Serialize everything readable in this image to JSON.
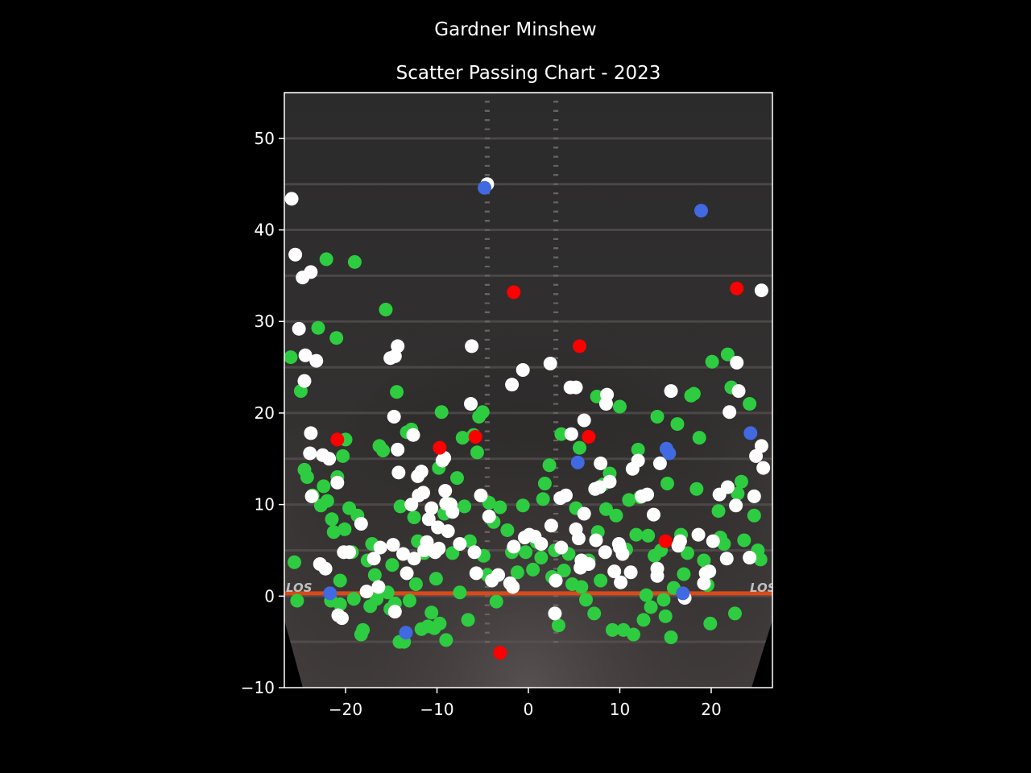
{
  "chart_data": {
    "type": "scatter",
    "title": "Gardner Minshew",
    "subtitle": "Scatter Passing Chart - 2023",
    "xlabel": "",
    "ylabel": "",
    "xlim": [
      -26.7,
      26.7
    ],
    "ylim": [
      -10,
      55
    ],
    "xticks": [
      -20,
      -10,
      0,
      10,
      20
    ],
    "yticks": [
      -10,
      0,
      10,
      20,
      30,
      40,
      50
    ],
    "grid": false,
    "legend": "none",
    "background": "football field image with LOS line at y=0",
    "field_labels": [
      "LOS",
      "LOS"
    ],
    "colors": {
      "complete": "#2ecc40",
      "incomplete": "#ffffff",
      "interception": "#ff0000",
      "touchdown": "#4169e1",
      "los_line": "#d94a1a",
      "axis": "#ffffff"
    },
    "series": [
      {
        "key": "complete",
        "points": [
          [
            -26,
            26.1
          ],
          [
            -25.6,
            3.7
          ],
          [
            -25.3,
            -0.5
          ],
          [
            -24.9,
            22.4
          ],
          [
            -24.5,
            13.8
          ],
          [
            -24.2,
            13.0
          ],
          [
            -23.6,
            11.0
          ],
          [
            -23.0,
            29.3
          ],
          [
            -22.7,
            9.9
          ],
          [
            -22.4,
            12.0
          ],
          [
            -22.0,
            10.4
          ],
          [
            -22.1,
            36.8
          ],
          [
            -21.6,
            -0.5
          ],
          [
            -21.3,
            7.0
          ],
          [
            -21.5,
            8.4
          ],
          [
            -21,
            28.2
          ],
          [
            -20.9,
            13.0
          ],
          [
            -20.6,
            1.7
          ],
          [
            -20.6,
            -0.9
          ],
          [
            -20.3,
            15.3
          ],
          [
            -20,
            17.1
          ],
          [
            -20.1,
            7.3
          ],
          [
            -19.6,
            9.6
          ],
          [
            -19.3,
            4.8
          ],
          [
            -19.1,
            -0.3
          ],
          [
            -19.0,
            36.5
          ],
          [
            -18.7,
            8.8
          ],
          [
            -18.3,
            -4.2
          ],
          [
            -18.1,
            -3.7
          ],
          [
            -17.6,
            3.9
          ],
          [
            -17.3,
            -1.1
          ],
          [
            -17.1,
            5.7
          ],
          [
            -16.8,
            2.3
          ],
          [
            -16.6,
            -0.3
          ],
          [
            -16.3,
            16.4
          ],
          [
            -15.9,
            15.9
          ],
          [
            -15.6,
            31.3
          ],
          [
            -15.4,
            0.4
          ],
          [
            -15.1,
            -1.4
          ],
          [
            -14.9,
            3.4
          ],
          [
            -14.6,
            -0.8
          ],
          [
            -14.4,
            22.3
          ],
          [
            -14.0,
            9.8
          ],
          [
            -14.1,
            -5.0
          ],
          [
            -13.6,
            -5.0
          ],
          [
            -13.3,
            17.9
          ],
          [
            -13.0,
            -0.5
          ],
          [
            -12.8,
            18.2
          ],
          [
            -12.5,
            8.6
          ],
          [
            -12.3,
            1.3
          ],
          [
            -12.1,
            6.0
          ],
          [
            -11.7,
            -3.6
          ],
          [
            -11.4,
            4.7
          ],
          [
            -11.0,
            -3.3
          ],
          [
            -10.6,
            -1.8
          ],
          [
            -10.3,
            -3.5
          ],
          [
            -10.1,
            1.9
          ],
          [
            -9.7,
            -3.0
          ],
          [
            -9.5,
            20.1
          ],
          [
            -9.8,
            14.0
          ],
          [
            -9.2,
            9.0
          ],
          [
            -9.0,
            -4.8
          ],
          [
            -8.7,
            10.1
          ],
          [
            -8.3,
            4.7
          ],
          [
            -7.8,
            12.9
          ],
          [
            -7.5,
            0.4
          ],
          [
            -7.2,
            17.3
          ],
          [
            -7.0,
            9.8
          ],
          [
            -6.6,
            -2.6
          ],
          [
            -6.4,
            6.0
          ],
          [
            -6.0,
            17.6
          ],
          [
            -5.6,
            15.7
          ],
          [
            -5.4,
            19.6
          ],
          [
            -5.0,
            20.1
          ],
          [
            -4.9,
            4.4
          ],
          [
            -4.5,
            2.3
          ],
          [
            -4.3,
            10.2
          ],
          [
            -3.8,
            8.1
          ],
          [
            -3.5,
            -0.6
          ],
          [
            -3.1,
            9.7
          ],
          [
            -2.3,
            7.2
          ],
          [
            -1.8,
            4.8
          ],
          [
            -1.2,
            2.6
          ],
          [
            -0.6,
            9.9
          ],
          [
            -0.3,
            4.8
          ],
          [
            0.5,
            2.9
          ],
          [
            0.9,
            5.9
          ],
          [
            1.4,
            4.2
          ],
          [
            1.8,
            12.3
          ],
          [
            1.6,
            10.6
          ],
          [
            2.3,
            14.3
          ],
          [
            2.6,
            2.1
          ],
          [
            2.9,
            5.0
          ],
          [
            3.3,
            -3.2
          ],
          [
            3.6,
            17.7
          ],
          [
            3.9,
            2.8
          ],
          [
            4.4,
            4.6
          ],
          [
            4.8,
            1.3
          ],
          [
            5.2,
            9.6
          ],
          [
            5.6,
            16.2
          ],
          [
            5.8,
            1.0
          ],
          [
            6.3,
            -0.4
          ],
          [
            6.6,
            3.9
          ],
          [
            7.2,
            -1.9
          ],
          [
            7.6,
            7.0
          ],
          [
            7.5,
            21.8
          ],
          [
            7.9,
            1.7
          ],
          [
            8.2,
            12.2
          ],
          [
            8.5,
            9.5
          ],
          [
            8.9,
            13.4
          ],
          [
            9.2,
            -3.7
          ],
          [
            9.6,
            8.8
          ],
          [
            10.0,
            20.7
          ],
          [
            10.4,
            -3.7
          ],
          [
            10.7,
            5.1
          ],
          [
            11.0,
            10.5
          ],
          [
            11.5,
            -4.2
          ],
          [
            11.8,
            6.7
          ],
          [
            12.0,
            16.0
          ],
          [
            12.2,
            10.8
          ],
          [
            12.6,
            -2.6
          ],
          [
            12.9,
            0.1
          ],
          [
            13.1,
            6.6
          ],
          [
            13.4,
            -1.2
          ],
          [
            13.8,
            4.4
          ],
          [
            14.1,
            19.6
          ],
          [
            14.5,
            5.0
          ],
          [
            14.8,
            -0.4
          ],
          [
            15.0,
            -2.2
          ],
          [
            15.2,
            12.3
          ],
          [
            15.6,
            -4.5
          ],
          [
            15.9,
            0.9
          ],
          [
            16.3,
            18.8
          ],
          [
            16.7,
            6.7
          ],
          [
            17.0,
            2.4
          ],
          [
            17.4,
            4.7
          ],
          [
            17.8,
            21.9
          ],
          [
            18.1,
            22.1
          ],
          [
            18.4,
            11.7
          ],
          [
            18.7,
            17.3
          ],
          [
            19.2,
            3.9
          ],
          [
            19.6,
            1.2
          ],
          [
            19.9,
            -3.0
          ],
          [
            20.1,
            25.6
          ],
          [
            20.8,
            9.3
          ],
          [
            21.0,
            6.4
          ],
          [
            21.4,
            5.7
          ],
          [
            21.8,
            26.4
          ],
          [
            22.2,
            22.8
          ],
          [
            22.6,
            -1.9
          ],
          [
            22.9,
            11.2
          ],
          [
            23.3,
            12.5
          ],
          [
            23.6,
            6.1
          ],
          [
            24.2,
            21.0
          ],
          [
            24.7,
            8.8
          ],
          [
            25.1,
            5.0
          ],
          [
            25.4,
            4.0
          ]
        ]
      },
      {
        "key": "incomplete",
        "points": [
          [
            -25.9,
            43.4
          ],
          [
            -25.5,
            37.3
          ],
          [
            -25.1,
            29.2
          ],
          [
            -24.7,
            34.8
          ],
          [
            -24.5,
            23.5
          ],
          [
            -24.4,
            26.3
          ],
          [
            -23.8,
            35.4
          ],
          [
            -23.8,
            17.8
          ],
          [
            -23.9,
            15.6
          ],
          [
            -23.7,
            10.9
          ],
          [
            -23.2,
            25.7
          ],
          [
            -22.8,
            3.5
          ],
          [
            -22.5,
            15.4
          ],
          [
            -22.2,
            3.0
          ],
          [
            -21.8,
            15.0
          ],
          [
            -20.8,
            -2.1
          ],
          [
            -20.9,
            12.4
          ],
          [
            -20.2,
            4.8
          ],
          [
            -20.4,
            -2.4
          ],
          [
            -19.6,
            4.8
          ],
          [
            -18.3,
            7.9
          ],
          [
            -17.7,
            0.5
          ],
          [
            -16.9,
            4.1
          ],
          [
            -16.4,
            1.0
          ],
          [
            -16.2,
            5.3
          ],
          [
            -15.1,
            26.0
          ],
          [
            -14.6,
            26.2
          ],
          [
            -14.7,
            19.6
          ],
          [
            -14.3,
            27.3
          ],
          [
            -14.3,
            16.0
          ],
          [
            -14.2,
            13.5
          ],
          [
            -14.8,
            5.6
          ],
          [
            -14.6,
            -1.7
          ],
          [
            -13.7,
            4.6
          ],
          [
            -13.3,
            2.5
          ],
          [
            -12.8,
            10.0
          ],
          [
            -12.6,
            17.6
          ],
          [
            -12.5,
            4.1
          ],
          [
            -12.1,
            13.1
          ],
          [
            -12.0,
            11.0
          ],
          [
            -11.7,
            13.6
          ],
          [
            -11.5,
            11.3
          ],
          [
            -11.4,
            5.0
          ],
          [
            -11.1,
            5.9
          ],
          [
            -10.9,
            8.4
          ],
          [
            -10.6,
            9.6
          ],
          [
            -10.2,
            4.8
          ],
          [
            -9.9,
            7.5
          ],
          [
            -9.8,
            5.2
          ],
          [
            -9.4,
            14.8
          ],
          [
            -9.2,
            15.1
          ],
          [
            -9.1,
            11.5
          ],
          [
            -9.0,
            10.1
          ],
          [
            -8.8,
            7.1
          ],
          [
            -8.5,
            10.0
          ],
          [
            -8.3,
            9.2
          ],
          [
            -7.5,
            5.7
          ],
          [
            -6.3,
            21.0
          ],
          [
            -6.2,
            27.3
          ],
          [
            -5.9,
            4.8
          ],
          [
            -5.7,
            2.5
          ],
          [
            -5.2,
            11.0
          ],
          [
            -4.5,
            45.0
          ],
          [
            -4.3,
            8.7
          ],
          [
            -4.0,
            1.7
          ],
          [
            -3.3,
            2.3
          ],
          [
            -2.0,
            1.4
          ],
          [
            -1.7,
            1.0
          ],
          [
            -1.8,
            23.1
          ],
          [
            -1.6,
            5.4
          ],
          [
            -0.6,
            24.7
          ],
          [
            -0.4,
            6.4
          ],
          [
            0.1,
            6.7
          ],
          [
            0.7,
            6.5
          ],
          [
            1.4,
            5.7
          ],
          [
            2.4,
            25.4
          ],
          [
            2.5,
            7.7
          ],
          [
            2.9,
            -1.9
          ],
          [
            3.0,
            1.7
          ],
          [
            3.5,
            10.7
          ],
          [
            3.6,
            5.3
          ],
          [
            4.1,
            11.0
          ],
          [
            4.7,
            17.7
          ],
          [
            4.6,
            22.8
          ],
          [
            5.2,
            22.8
          ],
          [
            5.2,
            7.3
          ],
          [
            5.5,
            6.3
          ],
          [
            5.7,
            3.1
          ],
          [
            5.8,
            3.9
          ],
          [
            6.1,
            19.2
          ],
          [
            6.1,
            9.0
          ],
          [
            6.6,
            3.5
          ],
          [
            7.3,
            11.7
          ],
          [
            7.4,
            6.1
          ],
          [
            7.8,
            11.9
          ],
          [
            7.9,
            14.5
          ],
          [
            8.4,
            4.8
          ],
          [
            8.5,
            21.0
          ],
          [
            8.6,
            22.0
          ],
          [
            8.9,
            12.5
          ],
          [
            9.4,
            2.7
          ],
          [
            9.9,
            5.7
          ],
          [
            10.0,
            5.3
          ],
          [
            10.1,
            1.5
          ],
          [
            10.3,
            4.6
          ],
          [
            11.2,
            2.6
          ],
          [
            11.4,
            13.9
          ],
          [
            12.0,
            14.8
          ],
          [
            12.4,
            10.9
          ],
          [
            13.0,
            11.1
          ],
          [
            13.7,
            8.9
          ],
          [
            14.1,
            3.0
          ],
          [
            14.1,
            2.2
          ],
          [
            14.4,
            14.5
          ],
          [
            15.6,
            22.4
          ],
          [
            16.4,
            5.5
          ],
          [
            16.6,
            6.0
          ],
          [
            17.1,
            -0.2
          ],
          [
            18.6,
            6.7
          ],
          [
            19.2,
            1.4
          ],
          [
            19.4,
            2.5
          ],
          [
            19.8,
            2.7
          ],
          [
            20.2,
            6.0
          ],
          [
            20.9,
            11.1
          ],
          [
            21.7,
            4.1
          ],
          [
            21.8,
            11.9
          ],
          [
            22.0,
            20.1
          ],
          [
            22.7,
            9.9
          ],
          [
            22.8,
            25.5
          ],
          [
            23.0,
            22.4
          ],
          [
            24.2,
            4.2
          ],
          [
            24.7,
            10.9
          ],
          [
            24.9,
            15.3
          ],
          [
            25.5,
            16.4
          ],
          [
            25.5,
            33.4
          ],
          [
            25.7,
            14.0
          ]
        ]
      },
      {
        "key": "interception",
        "points": [
          [
            -20.9,
            17.1
          ],
          [
            -9.7,
            16.2
          ],
          [
            -5.8,
            17.4
          ],
          [
            -3.1,
            -6.2
          ],
          [
            -1.6,
            33.2
          ],
          [
            5.6,
            27.3
          ],
          [
            6.6,
            17.4
          ],
          [
            15.0,
            6.0
          ],
          [
            22.8,
            33.6
          ]
        ]
      },
      {
        "key": "touchdown",
        "points": [
          [
            -21.7,
            0.3
          ],
          [
            -13.4,
            -4.0
          ],
          [
            -4.8,
            44.6
          ],
          [
            5.4,
            14.6
          ],
          [
            15.1,
            16.1
          ],
          [
            15.4,
            15.6
          ],
          [
            16.9,
            0.3
          ],
          [
            18.9,
            42.1
          ],
          [
            24.3,
            17.8
          ]
        ]
      }
    ]
  }
}
